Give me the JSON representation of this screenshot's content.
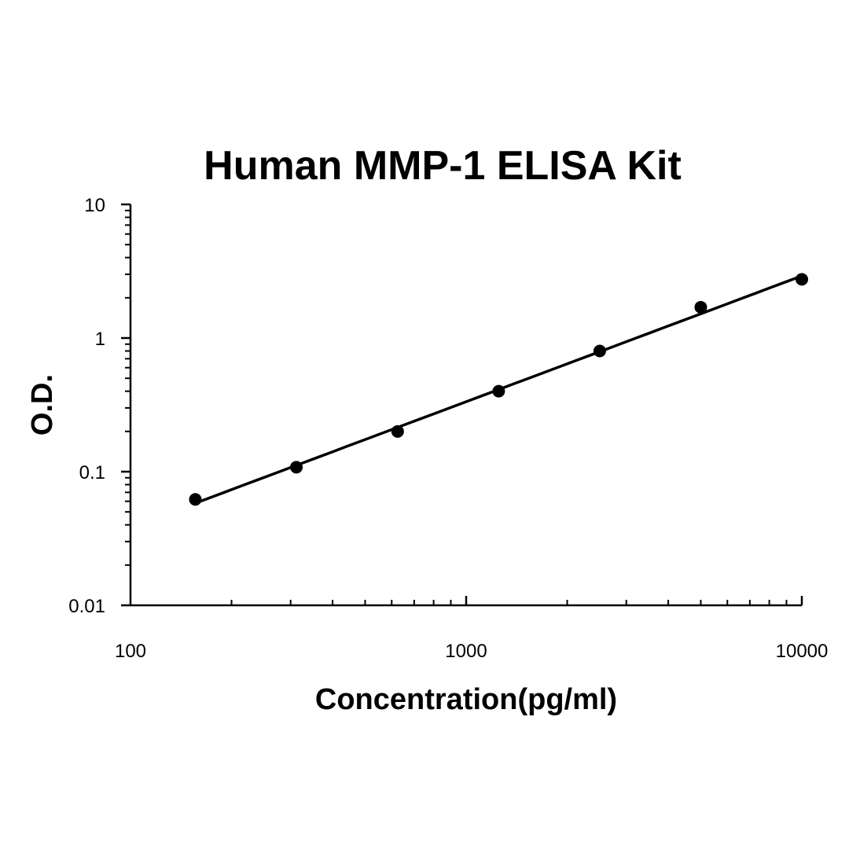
{
  "chart_data": {
    "type": "scatter",
    "title": "Human MMP-1 ELISA Kit",
    "xlabel": "Concentration(pg/ml)",
    "ylabel": "O.D.",
    "xscale": "log",
    "yscale": "log",
    "xlim": [
      100,
      10000
    ],
    "ylim": [
      0.01,
      10
    ],
    "x_ticks": [
      {
        "value": 100,
        "label": "100"
      },
      {
        "value": 1000,
        "label": "1000"
      },
      {
        "value": 10000,
        "label": "10000"
      }
    ],
    "y_ticks": [
      {
        "value": 0.01,
        "label": "0.01"
      },
      {
        "value": 0.1,
        "label": "0.1"
      },
      {
        "value": 1,
        "label": "1"
      },
      {
        "value": 10,
        "label": "10"
      }
    ],
    "grid": false,
    "legend": "none",
    "series": [
      {
        "x": [
          156,
          312,
          625,
          1250,
          2500,
          5000,
          10000
        ],
        "y": [
          0.062,
          0.108,
          0.2,
          0.4,
          0.8,
          1.7,
          2.75
        ],
        "color": "#000000",
        "marker": "circle",
        "fit_line": true
      }
    ]
  }
}
